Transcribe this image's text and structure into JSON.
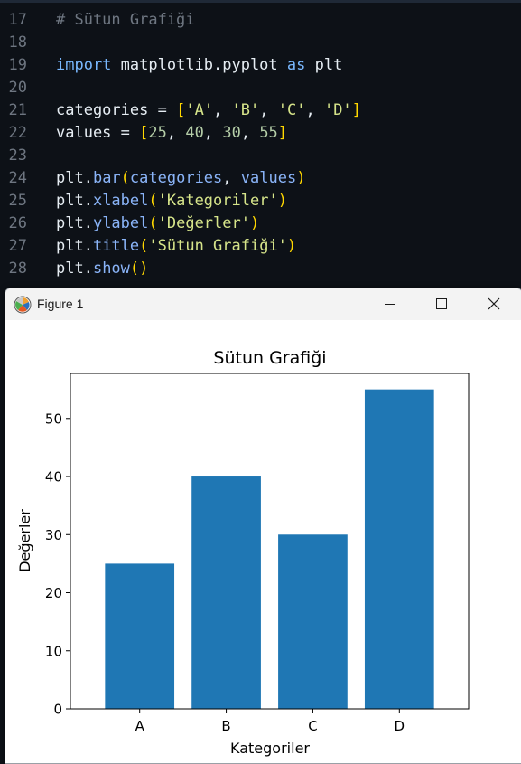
{
  "editor": {
    "lines": [
      {
        "no": "17",
        "tokens": [
          {
            "t": "# Sütun Grafiği",
            "c": "c-com"
          }
        ]
      },
      {
        "no": "18",
        "tokens": []
      },
      {
        "no": "19",
        "tokens": [
          {
            "t": "import",
            "c": "c-kw"
          },
          {
            "t": " matplotlib.pyplot ",
            "c": "c-pun"
          },
          {
            "t": "as",
            "c": "c-kw"
          },
          {
            "t": " plt",
            "c": "c-pun"
          }
        ]
      },
      {
        "no": "20",
        "tokens": []
      },
      {
        "no": "21",
        "tokens": [
          {
            "t": "categories ",
            "c": "c-pun"
          },
          {
            "t": "=",
            "c": "c-op"
          },
          {
            "t": " ",
            "c": "c-pun"
          },
          {
            "t": "[",
            "c": "c-br"
          },
          {
            "t": "'A'",
            "c": "c-str"
          },
          {
            "t": ", ",
            "c": "c-pun"
          },
          {
            "t": "'B'",
            "c": "c-str"
          },
          {
            "t": ", ",
            "c": "c-pun"
          },
          {
            "t": "'C'",
            "c": "c-str"
          },
          {
            "t": ", ",
            "c": "c-pun"
          },
          {
            "t": "'D'",
            "c": "c-str"
          },
          {
            "t": "]",
            "c": "c-br"
          }
        ]
      },
      {
        "no": "22",
        "tokens": [
          {
            "t": "values ",
            "c": "c-pun"
          },
          {
            "t": "=",
            "c": "c-op"
          },
          {
            "t": " ",
            "c": "c-pun"
          },
          {
            "t": "[",
            "c": "c-br"
          },
          {
            "t": "25",
            "c": "c-num"
          },
          {
            "t": ", ",
            "c": "c-pun"
          },
          {
            "t": "40",
            "c": "c-num"
          },
          {
            "t": ", ",
            "c": "c-pun"
          },
          {
            "t": "30",
            "c": "c-num"
          },
          {
            "t": ", ",
            "c": "c-pun"
          },
          {
            "t": "55",
            "c": "c-num"
          },
          {
            "t": "]",
            "c": "c-br"
          }
        ]
      },
      {
        "no": "23",
        "tokens": []
      },
      {
        "no": "24",
        "tokens": [
          {
            "t": "plt.",
            "c": "c-pun"
          },
          {
            "t": "bar",
            "c": "c-fn"
          },
          {
            "t": "(",
            "c": "c-br"
          },
          {
            "t": "categories",
            "c": "c-fn"
          },
          {
            "t": ", ",
            "c": "c-pun"
          },
          {
            "t": "values",
            "c": "c-fn"
          },
          {
            "t": ")",
            "c": "c-br"
          }
        ]
      },
      {
        "no": "25",
        "tokens": [
          {
            "t": "plt.",
            "c": "c-pun"
          },
          {
            "t": "xlabel",
            "c": "c-fn"
          },
          {
            "t": "(",
            "c": "c-br"
          },
          {
            "t": "'Kategoriler'",
            "c": "c-str"
          },
          {
            "t": ")",
            "c": "c-br"
          }
        ]
      },
      {
        "no": "26",
        "tokens": [
          {
            "t": "plt.",
            "c": "c-pun"
          },
          {
            "t": "ylabel",
            "c": "c-fn"
          },
          {
            "t": "(",
            "c": "c-br"
          },
          {
            "t": "'Değerler'",
            "c": "c-str"
          },
          {
            "t": ")",
            "c": "c-br"
          }
        ]
      },
      {
        "no": "27",
        "tokens": [
          {
            "t": "plt.",
            "c": "c-pun"
          },
          {
            "t": "title",
            "c": "c-fn"
          },
          {
            "t": "(",
            "c": "c-br"
          },
          {
            "t": "'Sütun Grafiği'",
            "c": "c-str"
          },
          {
            "t": ")",
            "c": "c-br"
          }
        ]
      },
      {
        "no": "28",
        "tokens": [
          {
            "t": "plt.",
            "c": "c-pun"
          },
          {
            "t": "show",
            "c": "c-fn"
          },
          {
            "t": "()",
            "c": "c-br"
          }
        ]
      }
    ]
  },
  "figure_window": {
    "title": "Figure 1",
    "icons": {
      "app": "matplotlib-icon",
      "minimize": "minimize-icon",
      "maximize": "maximize-icon",
      "close": "close-icon"
    }
  },
  "colors": {
    "bar": "#1f77b4",
    "editor_bg": "#0d1117"
  },
  "chart_data": {
    "type": "bar",
    "title": "Sütun Grafiği",
    "xlabel": "Kategoriler",
    "ylabel": "Değerler",
    "categories": [
      "A",
      "B",
      "C",
      "D"
    ],
    "values": [
      25,
      40,
      30,
      55
    ],
    "ylim": [
      0,
      57.75
    ],
    "yticks": [
      0,
      10,
      20,
      30,
      40,
      50
    ],
    "grid": false
  }
}
